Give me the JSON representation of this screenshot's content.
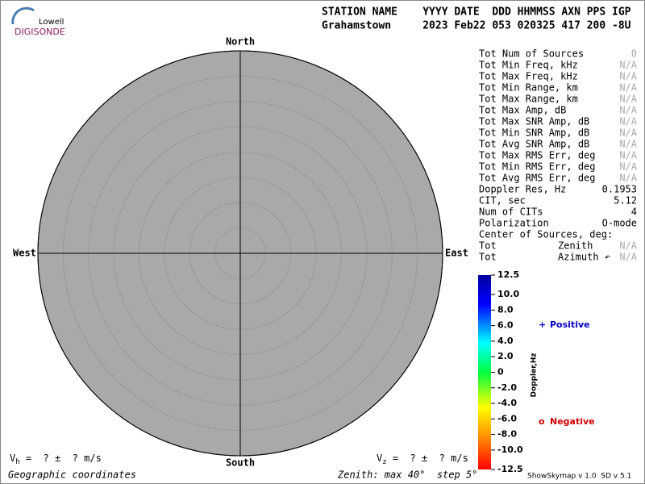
{
  "logo": {
    "top": "Lowell",
    "bottom": "DIGISONDE"
  },
  "header": {
    "labels": "STATION NAME    YYYY DATE  DDD HHMMSS AXN PPS IGP",
    "values": "Grahamstown     2023 Feb22 053 020325 417 200 -8U"
  },
  "stats": [
    [
      "Tot Num of Sources",
      "0"
    ],
    [
      "Tot Min Freq, kHz",
      "N/A"
    ],
    [
      "Tot Max Freq, kHz",
      "N/A"
    ],
    [
      "Tot Min Range, km",
      "N/A"
    ],
    [
      "Tot Max Range, km",
      "N/A"
    ],
    [
      "Tot Max Amp, dB",
      "N/A"
    ],
    [
      "Tot Max SNR Amp, dB",
      "N/A"
    ],
    [
      "Tot Min SNR Amp, dB",
      "N/A"
    ],
    [
      "Tot Avg SNR Amp, dB",
      "N/A"
    ],
    [
      "Tot Max RMS Err, deg",
      "N/A"
    ],
    [
      "Tot Min RMS Err, deg",
      "N/A"
    ],
    [
      "Tot Avg RMS Err, deg",
      "N/A"
    ],
    [
      "Doppler Res, Hz",
      "0.1953"
    ],
    [
      "CIT, sec",
      "5.12"
    ],
    [
      "Num of CITs",
      "4"
    ],
    [
      "Polarization",
      "O-mode"
    ],
    [
      "Center of Sources, deg:"
    ],
    [
      "Tot",
      "Zenith",
      "N/A"
    ],
    [
      "Tot",
      "Azimuth ↶",
      "N/A"
    ]
  ],
  "chart_data": {
    "type": "polar",
    "directions": {
      "north": "North",
      "south": "South",
      "east": "East",
      "west": "West"
    },
    "rlim": [
      0,
      40
    ],
    "rticks": [
      5,
      10,
      15,
      20,
      25,
      30,
      35,
      40
    ],
    "zlim": [
      -12.5,
      12.5
    ],
    "zticks": [
      12.5,
      {
        "value": 10,
        "label": "10.0"
      },
      {
        "value": 8,
        "label": "8.0"
      },
      {
        "value": 6,
        "label": "6.0"
      },
      {
        "value": 4,
        "label": "4.0"
      },
      {
        "value": 2,
        "label": "2.0"
      },
      0,
      {
        "value": -2,
        "label": "-2.0"
      },
      {
        "value": -4,
        "label": "-4.0"
      },
      {
        "value": -6,
        "label": "-6.0"
      },
      {
        "value": -8,
        "label": "-8.0"
      },
      {
        "value": -10,
        "label": "-10.0"
      },
      -12.5
    ],
    "colorbar_label": "Doppler,Hz",
    "legend": [
      {
        "symbol": "+",
        "name": "Positive",
        "color": "#0000c0"
      },
      {
        "symbol": "o",
        "name": "Negative",
        "color": "#d00000"
      }
    ],
    "vh": {
      "symbol": "V",
      "sub": "h",
      "text": " =  ? ±  ? m/s"
    },
    "vz": {
      "symbol": "V",
      "sub": "z",
      "text": " =  ? ±  ? m/s"
    },
    "footer": {
      "coords": "Geographic coordinates",
      "zenith": "Zenith: max 40°  step 5°",
      "version": "ShowSkymap v 1.0  SD v 5.1"
    }
  }
}
